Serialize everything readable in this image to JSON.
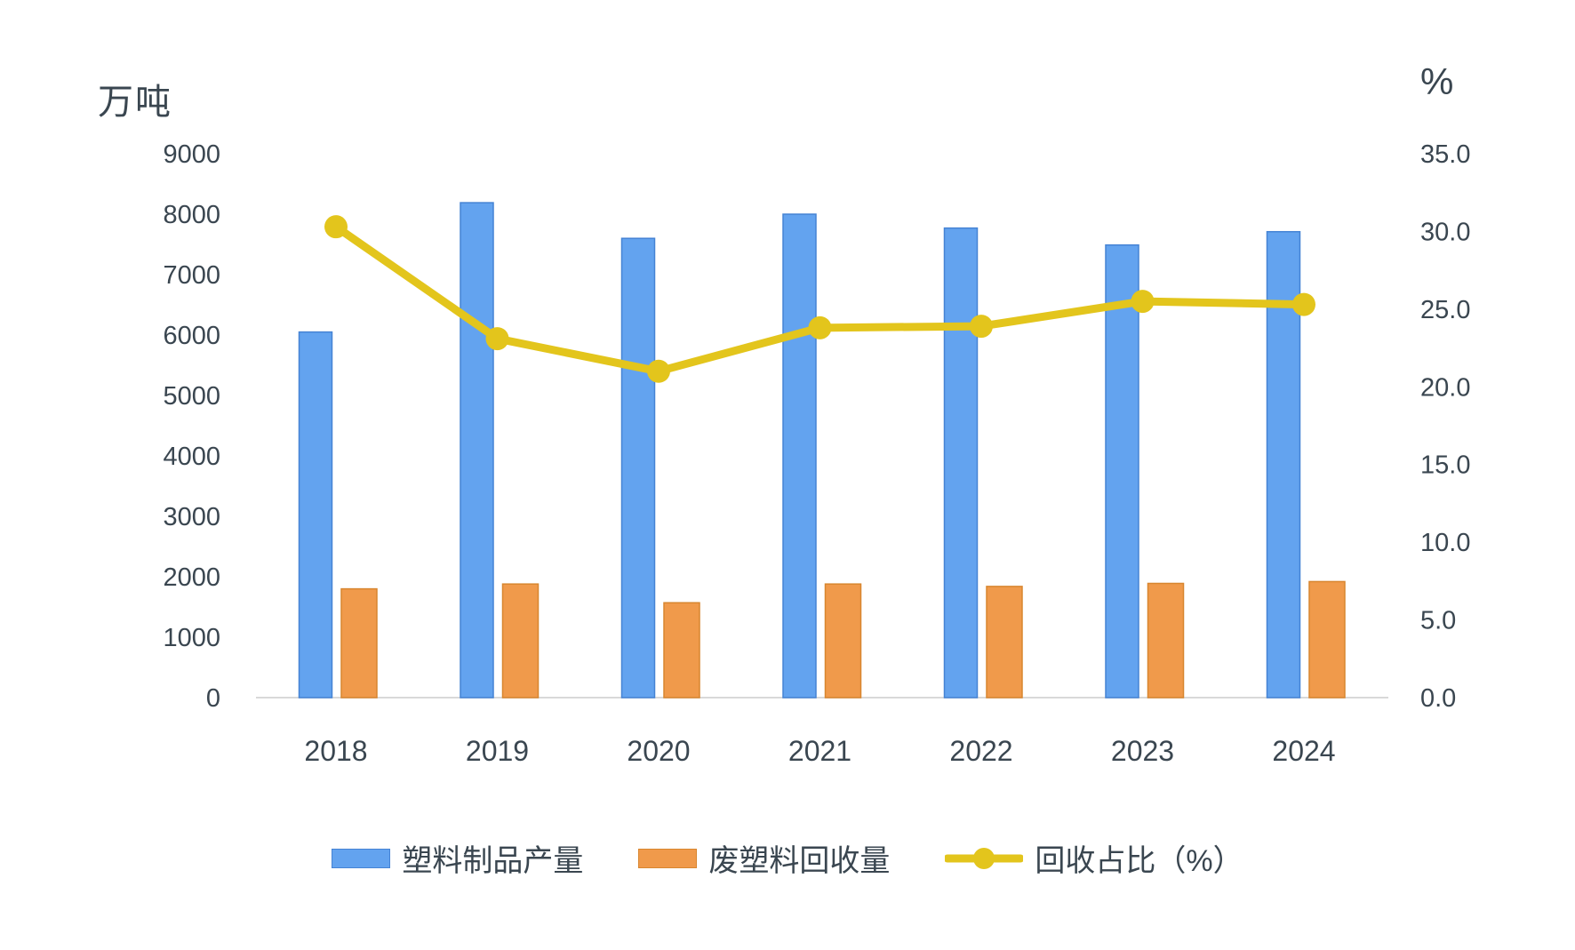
{
  "chart": {
    "left_axis_title": "万吨",
    "right_axis_title": "%",
    "text_color": "#3a4650",
    "axis_line_color": "#d9d9d9",
    "background_color": "#ffffff"
  },
  "chart_data": {
    "type": "bar",
    "subtype": "grouped-bar-with-line-combo",
    "categories": [
      "2018",
      "2019",
      "2020",
      "2021",
      "2022",
      "2023",
      "2024"
    ],
    "series": [
      {
        "name": "塑料制品产量",
        "type": "bar",
        "axis": "left",
        "unit": "万吨",
        "color": "#63a3ef",
        "border_color": "#4583d4",
        "values": [
          6050,
          8190,
          7600,
          8000,
          7770,
          7490,
          7710
        ]
      },
      {
        "name": "废塑料回收量",
        "type": "bar",
        "axis": "left",
        "unit": "万吨",
        "color": "#f09a4b",
        "border_color": "#d8862f",
        "values": [
          1800,
          1880,
          1570,
          1880,
          1840,
          1890,
          1920
        ]
      },
      {
        "name": "回收占比（%）",
        "type": "line",
        "axis": "right",
        "unit": "%",
        "color": "#e3c51c",
        "values": [
          30.3,
          23.1,
          21.0,
          23.8,
          23.9,
          25.5,
          25.3
        ]
      }
    ],
    "left_axis": {
      "title": "万吨",
      "min": 0,
      "max": 9000,
      "step": 1000,
      "tick_labels": [
        "0",
        "1000",
        "2000",
        "3000",
        "4000",
        "5000",
        "6000",
        "7000",
        "8000",
        "9000"
      ]
    },
    "right_axis": {
      "title": "%",
      "min": 0,
      "max": 35,
      "step": 5,
      "tick_labels": [
        "0.0",
        "5.0",
        "10.0",
        "15.0",
        "20.0",
        "25.0",
        "30.0",
        "35.0"
      ]
    },
    "grid": false,
    "legend_position": "bottom"
  }
}
